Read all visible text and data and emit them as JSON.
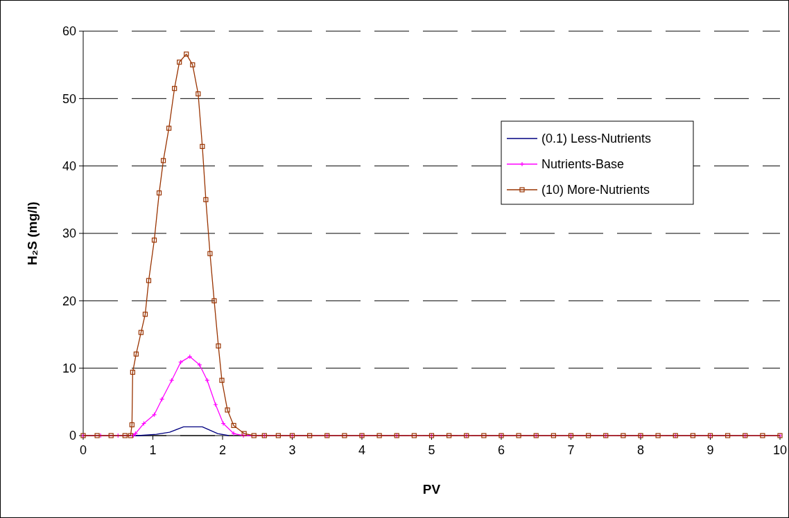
{
  "chart_data": {
    "type": "line",
    "xlabel": "PV",
    "ylabel": "H₂S (mg/l)",
    "xlim": [
      0,
      10
    ],
    "xticks": [
      0,
      1,
      2,
      3,
      4,
      5,
      6,
      7,
      8,
      9,
      10
    ],
    "ylim": [
      0,
      60
    ],
    "yticks": [
      0,
      10,
      20,
      30,
      40,
      50,
      60
    ],
    "grid": "y",
    "legend": "top right",
    "series": [
      {
        "name": "(0.1) Less-Nutrients",
        "color": "#000080",
        "marker": "none",
        "x": [
          0,
          0.5,
          0.79,
          1.05,
          1.24,
          1.44,
          1.71,
          1.93,
          2.09
        ],
        "values": [
          0,
          0,
          0,
          0.2,
          0.5,
          1.3,
          1.3,
          0.3,
          0
        ]
      },
      {
        "name": "Nutrients-Base",
        "color": "#ff00ff",
        "marker": "cross",
        "x": [
          0,
          0.25,
          0.5,
          0.72,
          0.75,
          0.87,
          1.02,
          1.13,
          1.27,
          1.4,
          1.53,
          1.67,
          1.78,
          1.9,
          2.01,
          2.16,
          2.3,
          2.6,
          3,
          3.5,
          4,
          4.5,
          5,
          5.5,
          6,
          6.5,
          7,
          7.5,
          8,
          8.5,
          9,
          9.5,
          10
        ],
        "values": [
          0,
          0,
          0,
          0,
          0.3,
          1.8,
          3.1,
          5.4,
          8.2,
          10.9,
          11.7,
          10.5,
          8.2,
          4.6,
          1.8,
          0.3,
          0,
          0,
          0,
          0,
          0,
          0,
          0,
          0,
          0,
          0,
          0,
          0,
          0,
          0,
          0,
          0,
          0
        ]
      },
      {
        "name": "(10) More-Nutrients",
        "color": "#993300",
        "marker": "square",
        "x": [
          0,
          0.2,
          0.4,
          0.6,
          0.68,
          0.7,
          0.71,
          0.76,
          0.83,
          0.89,
          0.94,
          1.02,
          1.09,
          1.15,
          1.23,
          1.31,
          1.38,
          1.48,
          1.57,
          1.65,
          1.71,
          1.76,
          1.82,
          1.88,
          1.94,
          1.99,
          2.07,
          2.16,
          2.31,
          2.45,
          2.6,
          2.8,
          3,
          3.25,
          3.5,
          3.75,
          4,
          4.25,
          4.5,
          4.75,
          5,
          5.25,
          5.5,
          5.75,
          6,
          6.25,
          6.5,
          6.75,
          7,
          7.25,
          7.5,
          7.75,
          8,
          8.25,
          8.5,
          8.75,
          9,
          9.25,
          9.5,
          9.75,
          10
        ],
        "values": [
          0,
          0,
          0,
          0,
          0,
          1.6,
          9.4,
          12.1,
          15.3,
          18,
          23,
          29,
          36,
          40.8,
          45.6,
          51.5,
          55.4,
          56.6,
          55,
          50.7,
          42.9,
          35,
          27,
          20,
          13.3,
          8.2,
          3.8,
          1.5,
          0.3,
          0,
          0,
          0,
          0,
          0,
          0,
          0,
          0,
          0,
          0,
          0,
          0,
          0,
          0,
          0,
          0,
          0,
          0,
          0,
          0,
          0,
          0,
          0,
          0,
          0,
          0,
          0,
          0,
          0,
          0,
          0,
          0
        ]
      }
    ]
  }
}
